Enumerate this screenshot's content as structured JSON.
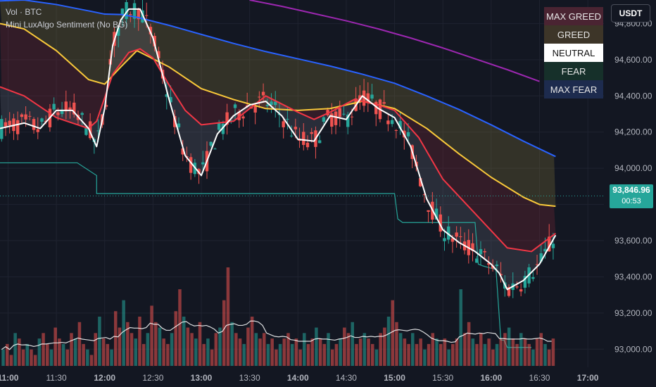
{
  "header": {
    "volume_label": "Vol · BTC",
    "indicator_label": "Mini LuxAlgo Sentiment (No BG)",
    "currency": "USDT"
  },
  "legend": [
    {
      "label": "MAX GREED",
      "color": "#4a2432"
    },
    {
      "label": "GREED",
      "color": "#3d3528"
    },
    {
      "label": "NEUTRAL",
      "color": "#ffffff",
      "text_color": "#111111"
    },
    {
      "label": "FEAR",
      "color": "#16302a"
    },
    {
      "label": "MAX FEAR",
      "color": "#1d2b4e"
    }
  ],
  "price_tag": {
    "price": "93,846.96",
    "countdown": "00:53"
  },
  "colors": {
    "up": "#26a69a",
    "down": "#ef5350",
    "purple": "#9c27b0",
    "blue": "#2962ff",
    "yellow": "#f9c93a",
    "red": "#f23645",
    "white": "#ffffff",
    "teal": "#26a69a"
  },
  "chart_data": {
    "type": "line",
    "y_axis": {
      "ticks": [
        93000,
        93200,
        93400,
        93600,
        93800,
        94000,
        94200,
        94400,
        94600,
        94800
      ],
      "tick_labels": [
        "93,000.00",
        "93,200.00",
        "93,400.00",
        "93,600.00",
        "93,800.00",
        "94,000.00",
        "94,200.00",
        "94,400.00",
        "94,600.00",
        "94,800.00"
      ],
      "ylim": [
        92900,
        94930
      ]
    },
    "x_axis": {
      "labels": [
        "11:00",
        "11:30",
        "12:00",
        "12:30",
        "13:00",
        "13:30",
        "14:00",
        "14:30",
        "15:00",
        "15:30",
        "16:00",
        "16:30",
        "17:00"
      ],
      "label_times": [
        660,
        690,
        720,
        750,
        780,
        810,
        840,
        870,
        900,
        930,
        960,
        990,
        1020
      ],
      "xlim": [
        655,
        1030
      ]
    },
    "last_price": 93846.96,
    "series": [
      {
        "name": "",
        "color": "#9c27b0",
        "x": [
          810,
          830,
          850,
          870,
          890,
          910,
          930,
          950,
          970,
          990
        ],
        "y": [
          94930,
          94895,
          94855,
          94815,
          94770,
          94720,
          94665,
          94605,
          94545,
          94480
        ]
      },
      {
        "name": "",
        "color": "#2962ff",
        "x": [
          655,
          670,
          690,
          710,
          720,
          730,
          740,
          760,
          780,
          800,
          820,
          840,
          860,
          880,
          900,
          920,
          940,
          960,
          980,
          1000
        ],
        "y": [
          94925,
          94930,
          94905,
          94870,
          94852,
          94850,
          94835,
          94790,
          94740,
          94690,
          94645,
          94605,
          94565,
          94520,
          94470,
          94400,
          94325,
          94240,
          94150,
          94065
        ]
      },
      {
        "name": "",
        "color": "#f9c93a",
        "x": [
          655,
          670,
          690,
          710,
          720,
          730,
          740,
          760,
          780,
          800,
          820,
          840,
          860,
          880,
          900,
          920,
          940,
          960,
          980,
          990,
          1000
        ],
        "y": [
          94800,
          94770,
          94650,
          94490,
          94465,
          94560,
          94650,
          94560,
          94440,
          94380,
          94330,
          94320,
          94330,
          94370,
          94330,
          94220,
          94080,
          93950,
          93840,
          93800,
          93790
        ]
      },
      {
        "name": "",
        "color": "#f23645",
        "x": [
          655,
          670,
          690,
          710,
          715,
          725,
          735,
          742,
          750,
          760,
          770,
          780,
          800,
          820,
          840,
          850,
          860,
          875,
          890,
          900,
          915,
          930,
          950,
          970,
          985,
          1000
        ],
        "y": [
          94450,
          94400,
          94280,
          94220,
          94260,
          94520,
          94640,
          94660,
          94610,
          94460,
          94320,
          94240,
          94260,
          94400,
          94310,
          94270,
          94310,
          94380,
          94350,
          94320,
          94170,
          93940,
          93750,
          93560,
          93540,
          93640
        ]
      },
      {
        "name": "",
        "color": "#ffffff",
        "x": [
          655,
          670,
          680,
          690,
          700,
          710,
          715,
          720,
          725,
          730,
          735,
          742,
          750,
          760,
          770,
          780,
          790,
          800,
          810,
          820,
          830,
          840,
          850,
          860,
          865,
          870,
          880,
          890,
          900,
          910,
          920,
          930,
          940,
          950,
          960,
          965,
          970,
          980,
          990,
          1000
        ],
        "y": [
          94220,
          94250,
          94220,
          94320,
          94320,
          94220,
          94120,
          94330,
          94680,
          94820,
          94880,
          94880,
          94720,
          94380,
          94070,
          93960,
          94190,
          94290,
          94350,
          94370,
          94290,
          94160,
          94150,
          94290,
          94280,
          94270,
          94400,
          94330,
          94280,
          94120,
          93830,
          93660,
          93590,
          93540,
          93470,
          93420,
          93330,
          93380,
          93470,
          93630
        ]
      }
    ],
    "volume": {
      "values": [
        3,
        4,
        2,
        6,
        5,
        3,
        4,
        3,
        2,
        5,
        6,
        4,
        3,
        7,
        5,
        4,
        3,
        6,
        5,
        8,
        4,
        3,
        2,
        6,
        9,
        5,
        4,
        3,
        10,
        7,
        12,
        8,
        6,
        5,
        9,
        4,
        6,
        11,
        8,
        7,
        5,
        4,
        6,
        10,
        14,
        9,
        7,
        6,
        5,
        8,
        4,
        5,
        3,
        6,
        7,
        12,
        18,
        8,
        6,
        5,
        4,
        7,
        9,
        6,
        5,
        6,
        4,
        5,
        3,
        4,
        5,
        6,
        4,
        5,
        3,
        6,
        4,
        5,
        7,
        5,
        4,
        6,
        3,
        4,
        5,
        7,
        6,
        8,
        4,
        5,
        6,
        5,
        4,
        3,
        6,
        7,
        9,
        12,
        8,
        6,
        5,
        4,
        6,
        4,
        5,
        3,
        4,
        6,
        5,
        4,
        5,
        3,
        4,
        5,
        14,
        6,
        8,
        5,
        4,
        6,
        4,
        5,
        3,
        4,
        5,
        6,
        7,
        5,
        4,
        6,
        5,
        4,
        3,
        5,
        6,
        4,
        3,
        5
      ],
      "ma_color": "#ffffff"
    }
  }
}
